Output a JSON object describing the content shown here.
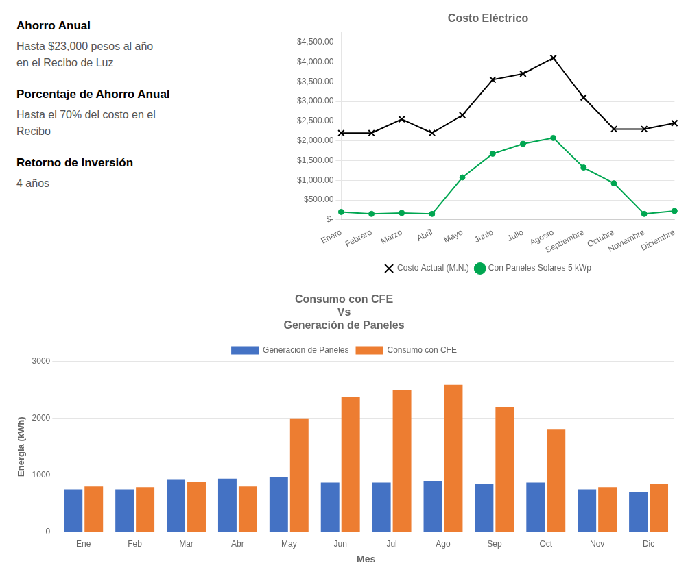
{
  "annotations": [
    {
      "title": "Ahorro Anual",
      "text": "Hasta $23,000 pesos al año\nen el Recibo de Luz"
    },
    {
      "title": "Porcentaje de Ahorro Anual",
      "text": "Hasta el 70% del costo en el\nRecibo"
    },
    {
      "title": "Retorno de Inversión",
      "text": "4 años"
    }
  ],
  "chart_data": [
    {
      "type": "line",
      "title": "Costo Eléctrico",
      "categories": [
        "Enero",
        "Febrero",
        "Marzo",
        "Abril",
        "Mayo",
        "Junio",
        "Julio",
        "Agosto",
        "Septiembre",
        "Octubre",
        "Noviembre",
        "Diciembre"
      ],
      "series": [
        {
          "name": "Costo Actual (M.N.)",
          "color": "#000000",
          "marker": "x",
          "values": [
            2200,
            2200,
            2550,
            2200,
            2650,
            3550,
            3700,
            4100,
            3100,
            2300,
            2300,
            2450
          ]
        },
        {
          "name": "Con Paneles Solares 5 kWp",
          "color": "#00a651",
          "marker": "circle",
          "values": [
            200,
            150,
            175,
            150,
            1075,
            1675,
            1925,
            2075,
            1325,
            925,
            150,
            225
          ]
        }
      ],
      "ylim": [
        0,
        4750
      ],
      "yticks": [
        {
          "value": 0,
          "label": "$-"
        },
        {
          "value": 500,
          "label": "$500.00"
        },
        {
          "value": 1000,
          "label": "$1,000.00"
        },
        {
          "value": 1500,
          "label": "$1,500.00"
        },
        {
          "value": 2000,
          "label": "$2,000.00"
        },
        {
          "value": 2500,
          "label": "$2,500.00"
        },
        {
          "value": 3000,
          "label": "$3,000.00"
        },
        {
          "value": 3500,
          "label": "$3,500.00"
        },
        {
          "value": 4000,
          "label": "$4,000.00"
        },
        {
          "value": 4500,
          "label": "$4,500.00"
        }
      ],
      "grid": "y",
      "legend": "bottom"
    },
    {
      "type": "bar",
      "title": [
        "Consumo con CFE",
        "Vs",
        "Generación de Paneles"
      ],
      "categories": [
        "Ene",
        "Feb",
        "Mar",
        "Abr",
        "May",
        "Jun",
        "Jul",
        "Ago",
        "Sep",
        "Oct",
        "Nov",
        "Dic"
      ],
      "series": [
        {
          "name": "Generacion de Paneles",
          "color": "#4472c4",
          "values": [
            750,
            750,
            920,
            940,
            960,
            870,
            870,
            900,
            840,
            870,
            750,
            700
          ]
        },
        {
          "name": "Consumo con CFE",
          "color": "#ed7d31",
          "values": [
            800,
            790,
            880,
            800,
            2000,
            2380,
            2490,
            2590,
            2200,
            1800,
            790,
            840
          ]
        }
      ],
      "xlabel": "Mes",
      "ylabel": "Energia (kWh)",
      "ylim": [
        0,
        3000
      ],
      "yticks": [
        0,
        1000,
        2000,
        3000
      ],
      "grid": "y",
      "legend": "top"
    }
  ]
}
